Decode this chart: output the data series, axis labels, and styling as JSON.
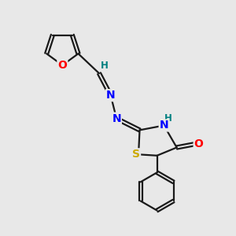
{
  "background_color": "#e8e8e8",
  "bond_color": "#1a1a1a",
  "bond_width": 1.6,
  "atom_colors": {
    "O": "#ff0000",
    "N": "#0000ff",
    "S": "#ccaa00",
    "H": "#008080",
    "C": "#1a1a1a"
  },
  "font_size_atoms": 10,
  "font_size_H": 8.5,
  "figsize": [
    3.0,
    3.0
  ],
  "dpi": 100,
  "xlim": [
    0,
    10
  ],
  "ylim": [
    0,
    10
  ]
}
